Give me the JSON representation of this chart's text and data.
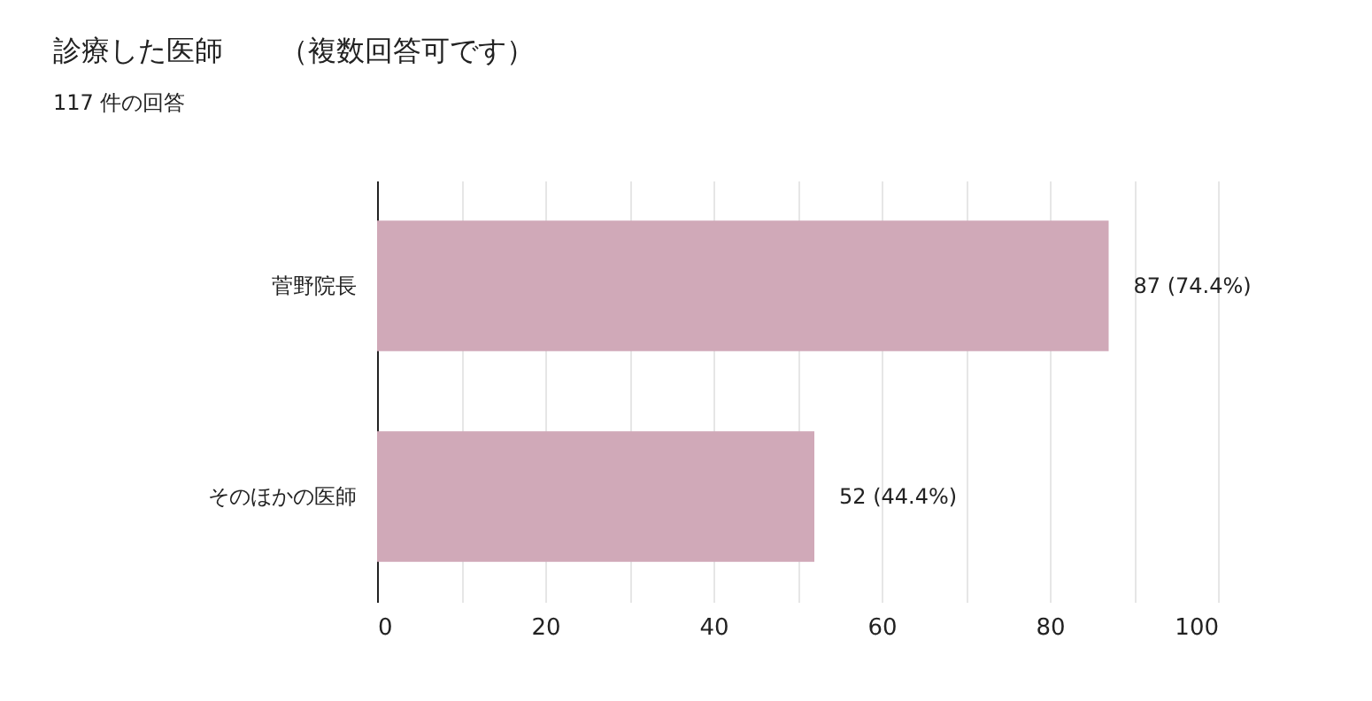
{
  "chart_data": {
    "type": "bar",
    "orientation": "horizontal",
    "title": "診療した医師　　（複数回答可です）",
    "subtitle": "117 件の回答",
    "categories": [
      "菅野院長",
      "そのほかの医師"
    ],
    "values": [
      87,
      52
    ],
    "value_labels": [
      "87 (74.4%)",
      "52 (44.4%)"
    ],
    "color": "#d0a9b8",
    "xlim": [
      0,
      100
    ],
    "xticks": [
      0,
      {
        "value": 10,
        "label": null
      },
      20,
      {
        "value": 30,
        "label": null
      },
      40,
      {
        "value": 50,
        "label": null
      },
      60,
      {
        "value": 70,
        "label": null
      },
      80,
      {
        "value": 90,
        "label": null
      },
      100
    ],
    "grid": "x"
  }
}
